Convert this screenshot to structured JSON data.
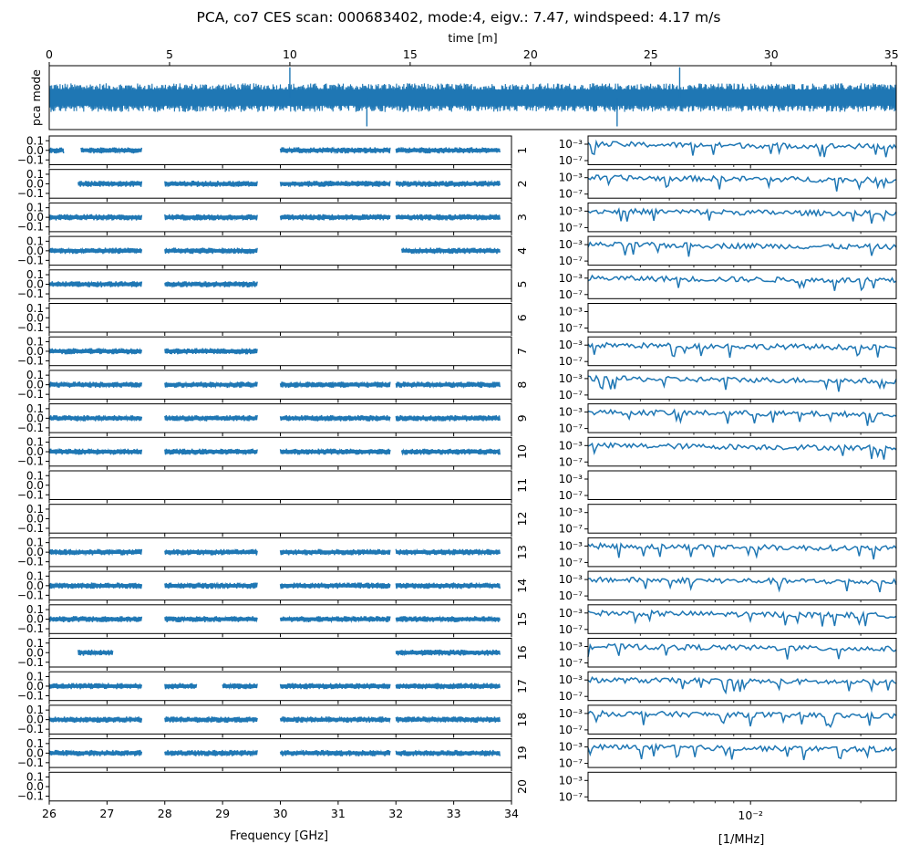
{
  "chart_data": [
    {
      "type": "line",
      "panel": "pca-timestream",
      "title": "PCA, co7 CES scan: 000683402, mode:4, eigv.: 7.47, windspeed: 4.17 m/s",
      "xlabel": "time [m]",
      "ylabel": "pca mode",
      "x_ticks": [
        0,
        5,
        10,
        15,
        20,
        25,
        30,
        35
      ],
      "x_tick_labels": [
        "0",
        "5",
        "10",
        "15",
        "20",
        "25",
        "30",
        "35"
      ],
      "xlim": [
        0,
        35.2
      ],
      "ylim": [
        -1,
        1
      ],
      "series": [
        {
          "name": "pca mode",
          "description": "noise band centered near 0, occasional spikes",
          "center": 0.0,
          "halfwidth": 0.45
        }
      ],
      "spikes_at": [
        10.0,
        26.2,
        23.6,
        13.2
      ]
    },
    {
      "type": "scatter",
      "panel": "feed-spectra",
      "xlabel": "Frequency [GHz]",
      "x_ticks": [
        26,
        27,
        28,
        29,
        30,
        31,
        32,
        33,
        34
      ],
      "x_tick_labels": [
        "26",
        "27",
        "28",
        "29",
        "30",
        "31",
        "32",
        "33",
        "34"
      ],
      "xlim": [
        26,
        34
      ],
      "ylim": [
        -0.15,
        0.15
      ],
      "y_ticks": [
        0.1,
        0.0,
        -0.1
      ],
      "y_tick_labels": [
        "0.1",
        "0.0",
        "−0.1"
      ],
      "feeds": [
        {
          "label": "1",
          "segments": [
            [
              26.0,
              26.25
            ],
            [
              26.55,
              27.6
            ],
            [
              30.0,
              31.9
            ],
            [
              32.0,
              33.8
            ]
          ]
        },
        {
          "label": "2",
          "segments": [
            [
              26.5,
              27.6
            ],
            [
              28.0,
              29.6
            ],
            [
              30.0,
              31.9
            ],
            [
              32.0,
              33.8
            ]
          ]
        },
        {
          "label": "3",
          "segments": [
            [
              26.0,
              27.6
            ],
            [
              28.0,
              29.6
            ],
            [
              30.0,
              31.9
            ],
            [
              32.0,
              33.8
            ]
          ]
        },
        {
          "label": "4",
          "segments": [
            [
              26.0,
              27.6
            ],
            [
              28.0,
              29.6
            ],
            [
              32.1,
              33.8
            ]
          ]
        },
        {
          "label": "5",
          "segments": [
            [
              26.0,
              27.6
            ],
            [
              28.0,
              29.6
            ]
          ]
        },
        {
          "label": "6",
          "segments": []
        },
        {
          "label": "7",
          "segments": [
            [
              26.0,
              27.6
            ],
            [
              28.0,
              29.6
            ]
          ]
        },
        {
          "label": "8",
          "segments": [
            [
              26.0,
              27.6
            ],
            [
              28.0,
              29.6
            ],
            [
              30.0,
              31.9
            ],
            [
              32.0,
              33.8
            ]
          ]
        },
        {
          "label": "9",
          "segments": [
            [
              26.0,
              27.6
            ],
            [
              28.0,
              29.6
            ],
            [
              30.0,
              31.9
            ],
            [
              32.0,
              33.8
            ]
          ]
        },
        {
          "label": "10",
          "segments": [
            [
              26.0,
              27.6
            ],
            [
              28.0,
              29.6
            ],
            [
              30.0,
              31.9
            ],
            [
              32.1,
              33.8
            ]
          ]
        },
        {
          "label": "11",
          "segments": []
        },
        {
          "label": "12",
          "segments": []
        },
        {
          "label": "13",
          "segments": [
            [
              26.0,
              27.6
            ],
            [
              28.0,
              29.6
            ],
            [
              30.0,
              31.9
            ],
            [
              32.0,
              33.8
            ]
          ]
        },
        {
          "label": "14",
          "segments": [
            [
              26.0,
              27.6
            ],
            [
              28.0,
              29.6
            ],
            [
              30.0,
              31.9
            ],
            [
              32.0,
              33.8
            ]
          ]
        },
        {
          "label": "15",
          "segments": [
            [
              26.0,
              27.6
            ],
            [
              28.0,
              29.6
            ],
            [
              30.0,
              31.9
            ],
            [
              32.0,
              33.8
            ]
          ]
        },
        {
          "label": "16",
          "segments": [
            [
              26.5,
              27.1
            ],
            [
              32.0,
              33.8
            ]
          ]
        },
        {
          "label": "17",
          "segments": [
            [
              26.0,
              27.6
            ],
            [
              28.0,
              28.55
            ],
            [
              29.0,
              29.6
            ],
            [
              30.0,
              31.9
            ],
            [
              32.0,
              33.8
            ]
          ]
        },
        {
          "label": "18",
          "segments": [
            [
              26.0,
              27.6
            ],
            [
              28.0,
              29.6
            ],
            [
              30.0,
              31.9
            ],
            [
              32.0,
              33.8
            ]
          ]
        },
        {
          "label": "19",
          "segments": [
            [
              26.0,
              27.6
            ],
            [
              28.0,
              29.6
            ],
            [
              30.0,
              31.9
            ],
            [
              32.0,
              33.8
            ]
          ]
        },
        {
          "label": "20",
          "segments": []
        }
      ]
    },
    {
      "type": "line",
      "panel": "power-spectra",
      "xlabel": "[1/MHz]",
      "xscale": "log",
      "yscale": "log",
      "xlim": [
        0.0036,
        0.025
      ],
      "x_ticks": [
        0.01
      ],
      "x_tick_labels": [
        "10⁻²"
      ],
      "ylim": [
        1e-08,
        0.1
      ],
      "y_ticks": [
        0.001,
        1e-07
      ],
      "y_tick_labels": [
        "10⁻³",
        "10⁻⁷"
      ],
      "feeds_with_data": [
        "1",
        "2",
        "3",
        "4",
        "5",
        "7",
        "8",
        "9",
        "10",
        "13",
        "14",
        "15",
        "16",
        "17",
        "18",
        "19"
      ],
      "feeds_empty": [
        "6",
        "11",
        "12",
        "20"
      ],
      "typical_level": 0.001
    }
  ],
  "colors": {
    "line": "#1f77b4",
    "axes": "#000000",
    "background": "#ffffff"
  }
}
